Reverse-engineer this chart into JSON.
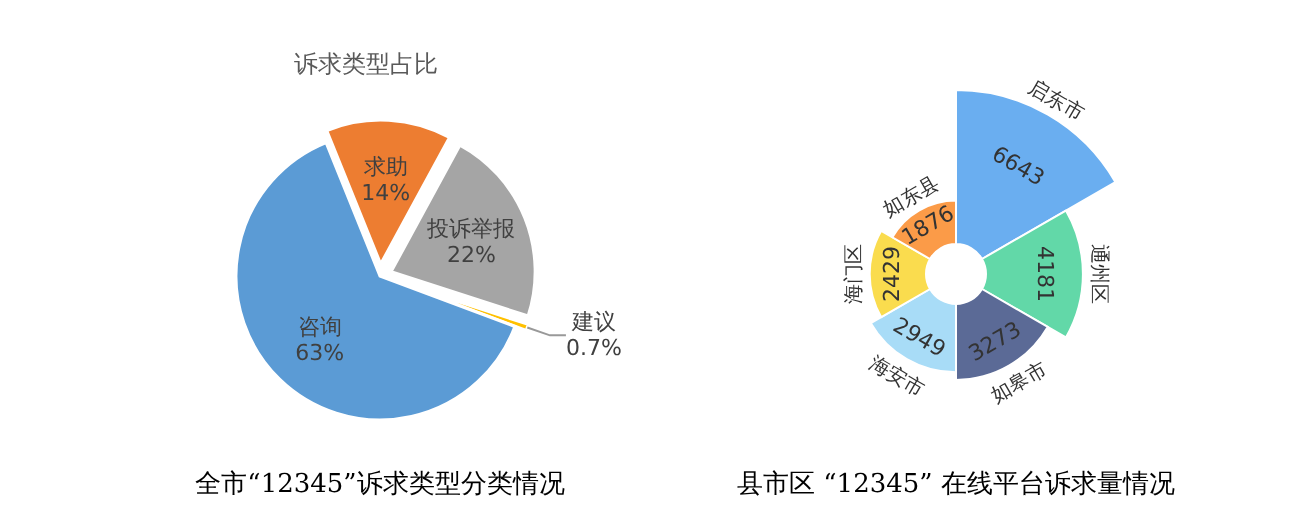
{
  "chart_data": [
    {
      "type": "pie",
      "title": "诉求类型占比",
      "categories": [
        "求助",
        "投诉举报",
        "建议",
        "咨询"
      ],
      "values": [
        14,
        22,
        0.7,
        63
      ],
      "value_labels": [
        "14%",
        "22%",
        "0.7%",
        "63%"
      ],
      "colors": [
        "#ed7d31",
        "#a5a5a5",
        "#ffc000",
        "#5b9bd5"
      ],
      "annotations": [
        "全市“12345”诉求类型分类情况"
      ]
    },
    {
      "type": "other",
      "categories": [
        "启东市",
        "通州区",
        "如皋市",
        "海安市",
        "海门区",
        "如东县"
      ],
      "values": [
        6643,
        4181,
        3273,
        2949,
        2429,
        1876
      ],
      "colors": [
        "#6aaef0",
        "#62d8a8",
        "#5b6a96",
        "#a8dcf7",
        "#fadc4e",
        "#fb9b48"
      ],
      "data_labels": true,
      "annotations": [
        "县市区 “12345” 在线平台诉求量情况"
      ]
    }
  ]
}
